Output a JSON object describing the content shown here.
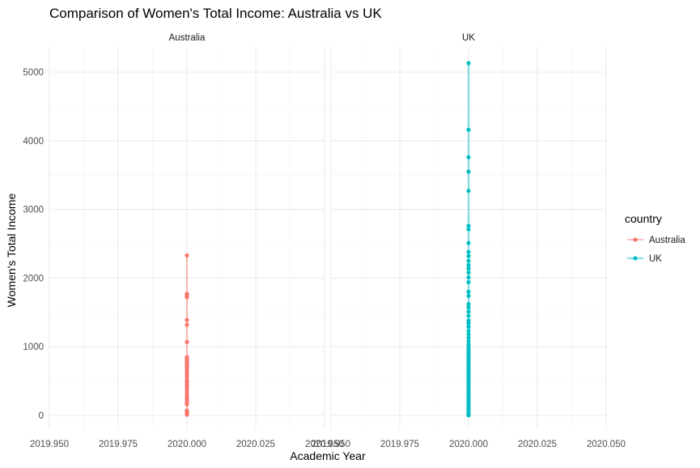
{
  "chart_data": {
    "type": "line",
    "title": "Comparison of Women's Total Income: Australia vs UK",
    "xlabel": "Academic Year",
    "ylabel": "Women's Total Income",
    "xlim": [
      2019.95,
      2020.05
    ],
    "ylim": [
      0,
      5200
    ],
    "x_ticks": [
      2019.95,
      2019.975,
      2020.0,
      2020.025,
      2020.05
    ],
    "x_tick_labels": [
      "2019.950",
      "2019.975",
      "2020.000",
      "2020.025",
      "2020.050"
    ],
    "y_ticks": [
      0,
      1000,
      2000,
      3000,
      4000,
      5000
    ],
    "y_tick_labels": [
      "0",
      "1000",
      "2000",
      "3000",
      "4000",
      "5000"
    ],
    "grid": true,
    "facets": [
      "Australia",
      "UK"
    ],
    "legend": {
      "title": "country",
      "placement": "right",
      "entries": [
        "Australia",
        "UK"
      ]
    },
    "series": [
      {
        "name": "Australia",
        "color": "#F8766D",
        "x": 2020.0,
        "values": [
          2330,
          1770,
          1750,
          1720,
          1390,
          1320,
          1070,
          850,
          820,
          800,
          780,
          760,
          730,
          700,
          680,
          650,
          620,
          600,
          560,
          520,
          500,
          480,
          450,
          420,
          380,
          340,
          300,
          280,
          260,
          230,
          200,
          180,
          160,
          70,
          50,
          30,
          10
        ]
      },
      {
        "name": "UK",
        "color": "#00BFC4",
        "x": 2020.0,
        "values": [
          5130,
          4160,
          3760,
          3550,
          3270,
          2760,
          2710,
          2510,
          2380,
          2320,
          2250,
          2190,
          2140,
          2080,
          2010,
          1940,
          1800,
          1740,
          1620,
          1570,
          1510,
          1450,
          1380,
          1340,
          1290,
          1230,
          1180,
          1130,
          1080,
          1030,
          990,
          960,
          930,
          900,
          870,
          840,
          810,
          780,
          750,
          720,
          690,
          660,
          630,
          600,
          570,
          540,
          510,
          480,
          450,
          420,
          390,
          360,
          330,
          300,
          270,
          240,
          210,
          180,
          150,
          120,
          90,
          60,
          30,
          10,
          0
        ]
      }
    ]
  }
}
